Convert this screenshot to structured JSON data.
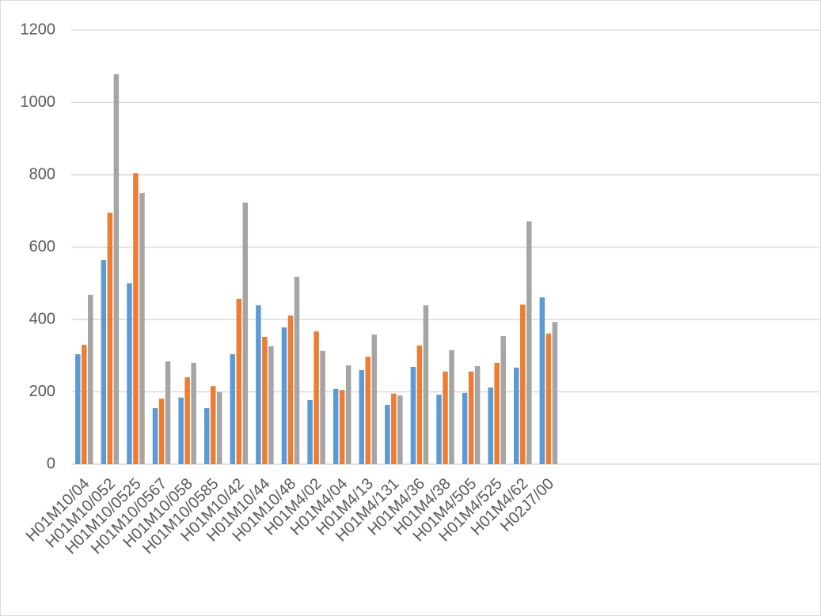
{
  "chart_data": {
    "type": "bar",
    "categories": [
      "H01M10/04",
      "H01M10/052",
      "H01M10/0525",
      "H01M10/0567",
      "H01M10/058",
      "H01M10/0585",
      "H01M10/42",
      "H01M10/44",
      "H01M10/48",
      "H01M4/02",
      "H01M4/04",
      "H01M4/13",
      "H01M4/131",
      "H01M4/36",
      "H01M4/38",
      "H01M4/505",
      "H01M4/525",
      "H01M4/62",
      "H02J7/00",
      null,
      null,
      null,
      null,
      null,
      null,
      null,
      null,
      null,
      null
    ],
    "series": [
      {
        "color": "#5b9bd5",
        "values": [
          304,
          564,
          500,
          155,
          184,
          155,
          304,
          439,
          378,
          177,
          208,
          260,
          164,
          269,
          192,
          197,
          212,
          267,
          461,
          null,
          null,
          null,
          null,
          null,
          null,
          null,
          null,
          null,
          null
        ]
      },
      {
        "color": "#ed7d31",
        "values": [
          330,
          695,
          804,
          181,
          240,
          216,
          457,
          352,
          411,
          367,
          205,
          297,
          195,
          328,
          256,
          256,
          280,
          441,
          361,
          null,
          null,
          null,
          null,
          null,
          null,
          null,
          null,
          null,
          null
        ]
      },
      {
        "color": "#a5a5a5",
        "values": [
          468,
          1078,
          750,
          284,
          280,
          199,
          723,
          326,
          518,
          313,
          273,
          358,
          190,
          439,
          315,
          271,
          354,
          671,
          393,
          null,
          null,
          null,
          null,
          null,
          null,
          null,
          null,
          null,
          null
        ]
      }
    ],
    "ylim": [
      0,
      1200
    ],
    "yticks": [
      0,
      200,
      400,
      600,
      800,
      1000,
      1200
    ],
    "grid": true
  }
}
